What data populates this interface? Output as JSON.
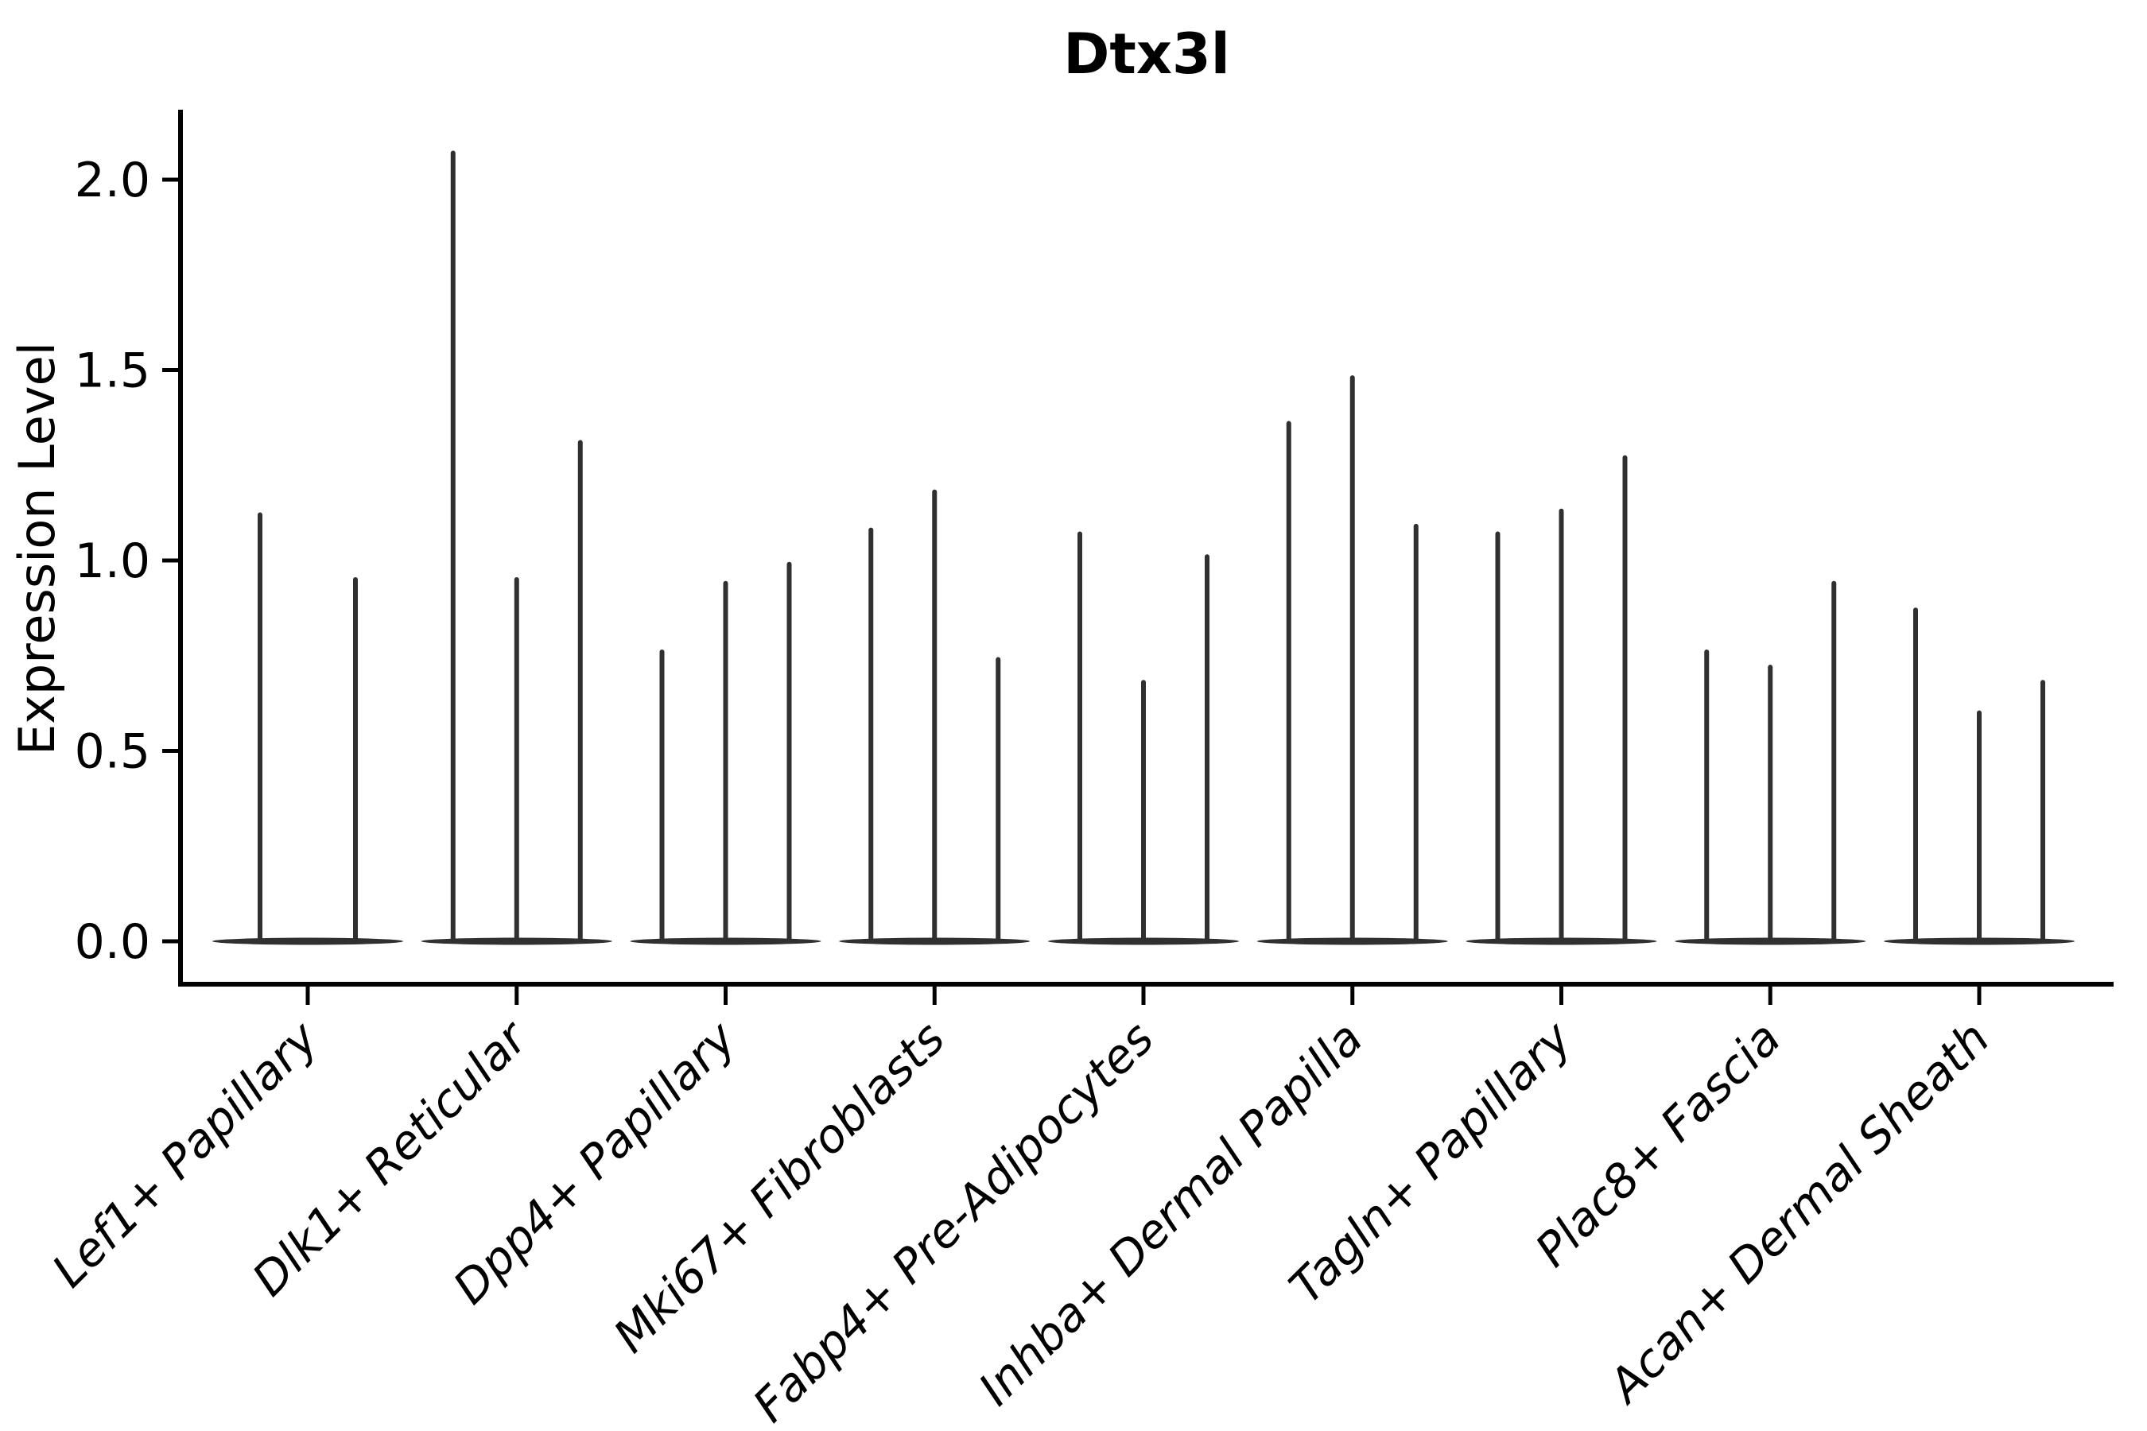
{
  "chart_data": {
    "type": "violin",
    "title": "Dtx3l",
    "xlabel": "",
    "ylabel": "Expression Level",
    "ylim": [
      0,
      2.18
    ],
    "yticks": [
      0.0,
      0.5,
      1.0,
      1.5,
      2.0
    ],
    "ytick_labels": [
      "0.0",
      "0.5",
      "1.0",
      "1.5",
      "2.0"
    ],
    "grid": false,
    "legend_position": "none",
    "violin_style": "thin-spike-violins, wide flat base at zero, dark gray",
    "violin_color": "#303030",
    "spine_color": "#000000",
    "categories": [
      "Lef1+ Papillary",
      "Dlk1+ Reticular",
      "Dpp4+ Papillary",
      "Mki67+ Fibroblasts",
      "Fabp4+ Pre-Adipocytes",
      "Inhba+ Dermal Papilla",
      "Tagln+ Papillary",
      "Plac8+ Fascia",
      "Acan+ Dermal Sheath"
    ],
    "violins_per_category": [
      [
        1.12,
        0.95
      ],
      [
        2.07,
        0.95,
        1.31
      ],
      [
        0.76,
        0.94,
        0.99
      ],
      [
        1.08,
        1.18,
        0.74
      ],
      [
        1.07,
        0.68,
        1.01
      ],
      [
        1.36,
        1.48,
        1.09
      ],
      [
        1.07,
        1.13,
        1.27
      ],
      [
        0.76,
        0.72,
        0.94
      ],
      [
        0.87,
        0.6,
        0.68
      ]
    ],
    "violins_min": 0.0,
    "note": "Each category shows 2-3 extremely thin violins (expression mostly 0, long thin tail up to max value listed)."
  }
}
